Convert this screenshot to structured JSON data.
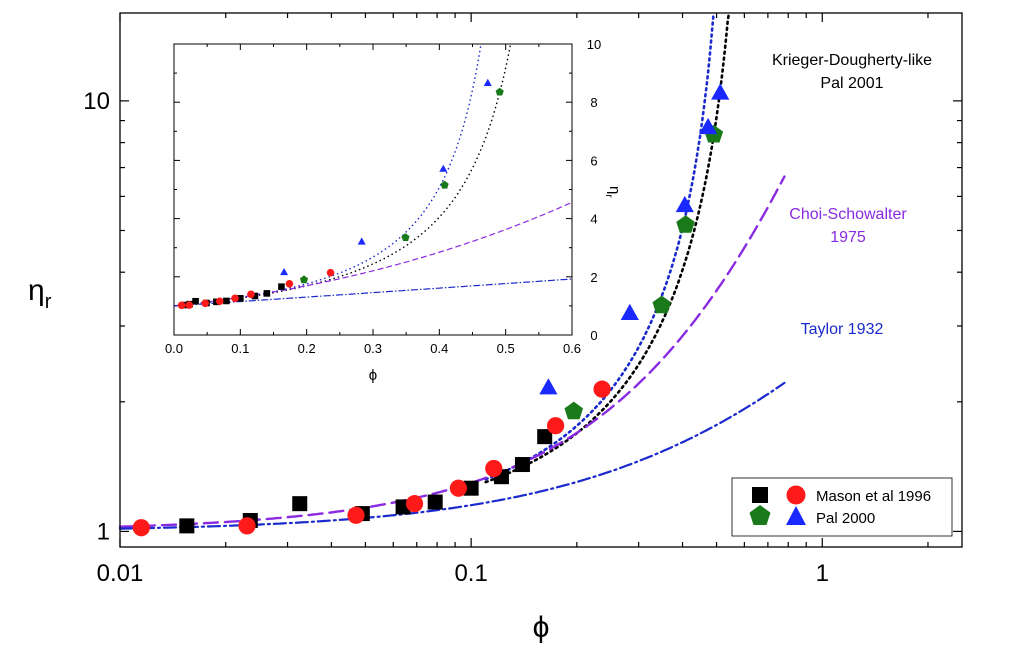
{
  "chart_data": [
    {
      "type": "scatter",
      "role": "main",
      "xscale": "log",
      "yscale": "log",
      "xlim": [
        0.01,
        2.5
      ],
      "ylim": [
        0.92,
        16
      ],
      "xlabel": "ϕ",
      "ylabel": "η",
      "ylabel_sub": "r",
      "x_tick_labels": [
        "0.01",
        "0.1",
        "1"
      ],
      "x_tick_values": [
        0.01,
        0.1,
        1
      ],
      "y_tick_labels": [
        "1",
        "10"
      ],
      "y_tick_values": [
        1,
        10
      ],
      "series": [
        {
          "name": "Mason et al 1996 (squares)",
          "marker": "square",
          "color": "#000000",
          "x": [
            0.0155,
            0.0235,
            0.0325,
            0.049,
            0.064,
            0.079,
            0.1,
            0.122,
            0.14,
            0.162
          ],
          "y": [
            1.03,
            1.06,
            1.16,
            1.1,
            1.14,
            1.17,
            1.26,
            1.34,
            1.43,
            1.66
          ]
        },
        {
          "name": "Mason et al 1996 (circles)",
          "marker": "circle",
          "color": "#ff1a1a",
          "x": [
            0.0115,
            0.023,
            0.047,
            0.069,
            0.092,
            0.116,
            0.174,
            0.236
          ],
          "y": [
            1.02,
            1.03,
            1.09,
            1.16,
            1.26,
            1.4,
            1.76,
            2.14
          ]
        },
        {
          "name": "Pal 2000 (pentagons)",
          "marker": "pentagon",
          "color": "#1a7a1a",
          "x": [
            0.196,
            0.349,
            0.408,
            0.491
          ],
          "y": [
            1.9,
            3.35,
            5.15,
            8.35
          ]
        },
        {
          "name": "Pal 2000 (triangles)",
          "marker": "triangle",
          "color": "#1a2aff",
          "x": [
            0.166,
            0.283,
            0.406,
            0.473,
            0.512
          ],
          "y": [
            2.15,
            3.2,
            5.7,
            8.65,
            10.4
          ]
        }
      ],
      "curves": [
        {
          "name": "Krieger-Dougherty-like Pal 2001 (blue dotted)",
          "style": "dotted",
          "color": "#1a2acc",
          "phi_max": 0.55
        },
        {
          "name": "Krieger-Dougherty-like Pal 2001 (black dotted)",
          "style": "dotted",
          "color": "#000000",
          "phi_max": 0.62
        },
        {
          "name": "Choi-Schowalter 1975",
          "style": "dashed",
          "color": "#8a2be2"
        },
        {
          "name": "Taylor 1932",
          "style": "dashdot",
          "color": "#1a2acc"
        }
      ],
      "annotations": {
        "kd_line1": "Krieger-Dougherty-like",
        "kd_line2": "Pal 2001",
        "cs_line1": "Choi-Schowalter",
        "cs_line2": "1975",
        "taylor": "Taylor 1932"
      },
      "annotation_colors": {
        "kd": "#000000",
        "cs": "#8a2be2",
        "taylor": "#1a2acc"
      },
      "legend": {
        "placement": "bottom-right",
        "entries": [
          "Mason et al 1996",
          "Pal 2000"
        ]
      }
    },
    {
      "type": "scatter",
      "role": "inset",
      "xscale": "linear",
      "yscale": "linear",
      "xlim": [
        0,
        0.6
      ],
      "ylim": [
        0,
        10
      ],
      "xlabel": "ϕ",
      "ylabel": "η",
      "ylabel_sub": "r",
      "y_axis_side": "right",
      "x_tick_labels": [
        "0.0",
        "0.1",
        "0.2",
        "0.3",
        "0.4",
        "0.5",
        "0.6"
      ],
      "x_tick_values": [
        0,
        0.1,
        0.2,
        0.3,
        0.4,
        0.5,
        0.6
      ],
      "y_tick_labels": [
        "0",
        "2",
        "4",
        "6",
        "8",
        "10"
      ],
      "y_tick_values": [
        0,
        2,
        4,
        6,
        8,
        10
      ],
      "series": [
        {
          "name": "squares",
          "marker": "square",
          "color": "#000000",
          "x": [
            0.0155,
            0.0235,
            0.0325,
            0.049,
            0.064,
            0.079,
            0.1,
            0.122,
            0.14,
            0.162
          ],
          "y": [
            1.03,
            1.06,
            1.16,
            1.1,
            1.14,
            1.17,
            1.26,
            1.34,
            1.43,
            1.66
          ]
        },
        {
          "name": "circles",
          "marker": "circle",
          "color": "#ff1a1a",
          "x": [
            0.0115,
            0.023,
            0.047,
            0.069,
            0.092,
            0.116,
            0.174,
            0.236
          ],
          "y": [
            1.02,
            1.03,
            1.09,
            1.16,
            1.26,
            1.4,
            1.76,
            2.14
          ]
        },
        {
          "name": "pentagons",
          "marker": "pentagon",
          "color": "#1a7a1a",
          "x": [
            0.196,
            0.349,
            0.408,
            0.491
          ],
          "y": [
            1.9,
            3.35,
            5.15,
            8.35
          ]
        },
        {
          "name": "triangles",
          "marker": "triangle",
          "color": "#1a2aff",
          "x": [
            0.166,
            0.283,
            0.406,
            0.473
          ],
          "y": [
            2.15,
            3.2,
            5.7,
            8.65
          ]
        }
      ]
    }
  ]
}
